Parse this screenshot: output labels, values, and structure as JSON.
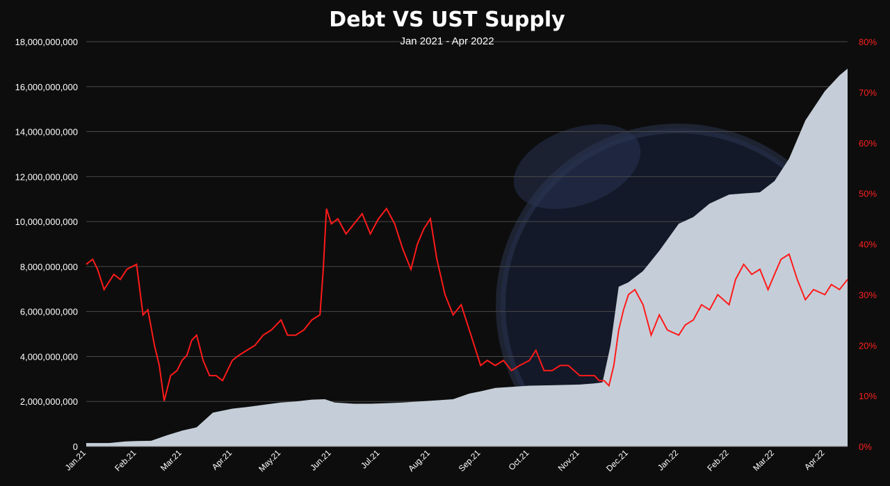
{
  "chart_data": {
    "type": "area",
    "title": "Debt VS UST Supply",
    "subtitle": "Jan 2021 - Apr 2022",
    "ylim": [
      0,
      18000000000
    ],
    "y2lim": [
      0,
      0.8
    ],
    "y_ticks": [
      "0",
      "2,000,000,000",
      "4,000,000,000",
      "6,000,000,000",
      "8,000,000,000",
      "10,000,000,000",
      "12,000,000,000",
      "14,000,000,000",
      "16,000,000,000",
      "18,000,000,000"
    ],
    "y2_ticks": [
      "0%",
      "10%",
      "20%",
      "30%",
      "40%",
      "50%",
      "60%",
      "70%",
      "80%"
    ],
    "x_ticks": [
      "Jan.21",
      "Feb.21",
      "Mar.21",
      "Apr.21",
      "May.21",
      "Jun.21",
      "Jul.21",
      "Aug.21",
      "Sep.21",
      "Oct.21",
      "Nov.21",
      "Dec.21",
      "Jan.22",
      "Feb.22",
      "Mar.22",
      "Apr.22"
    ],
    "grid": true,
    "colors": {
      "supply": "#c5ced8",
      "debt": "#ff1a1a",
      "background": "#0d0d0d",
      "watermark": "#1a2540"
    },
    "series": [
      {
        "kind": "area",
        "axis": "left",
        "x": [
          "2021-01-01",
          "2021-01-15",
          "2021-01-25",
          "2021-02-01",
          "2021-02-10",
          "2021-02-20",
          "2021-03-01",
          "2021-03-10",
          "2021-03-20",
          "2021-04-01",
          "2021-04-10",
          "2021-04-20",
          "2021-05-01",
          "2021-05-10",
          "2021-05-20",
          "2021-05-28",
          "2021-06-03",
          "2021-06-15",
          "2021-06-25",
          "2021-07-05",
          "2021-07-15",
          "2021-07-25",
          "2021-08-05",
          "2021-08-15",
          "2021-08-25",
          "2021-09-01",
          "2021-09-10",
          "2021-09-20",
          "2021-10-01",
          "2021-10-15",
          "2021-11-01",
          "2021-11-10",
          "2021-11-15",
          "2021-11-20",
          "2021-11-25",
          "2021-12-01",
          "2021-12-10",
          "2021-12-20",
          "2022-01-01",
          "2022-01-10",
          "2022-01-20",
          "2022-02-01",
          "2022-02-10",
          "2022-02-20",
          "2022-03-01",
          "2022-03-10",
          "2022-03-20",
          "2022-04-01",
          "2022-04-10",
          "2022-04-15"
        ],
        "values": [
          150000000,
          150000000,
          220000000,
          240000000,
          250000000,
          500000000,
          700000000,
          850000000,
          1500000000,
          1680000000,
          1750000000,
          1850000000,
          1950000000,
          2000000000,
          2080000000,
          2100000000,
          1950000000,
          1900000000,
          1900000000,
          1920000000,
          1950000000,
          2000000000,
          2050000000,
          2100000000,
          2350000000,
          2450000000,
          2600000000,
          2650000000,
          2700000000,
          2720000000,
          2750000000,
          2800000000,
          2850000000,
          4500000000,
          7100000000,
          7300000000,
          7800000000,
          8700000000,
          9900000000,
          10200000000,
          10800000000,
          11200000000,
          11250000000,
          11300000000,
          11800000000,
          12800000000,
          14500000000,
          15800000000,
          16500000000,
          16800000000
        ]
      },
      {
        "kind": "line",
        "axis": "right",
        "x": [
          "2021-01-01",
          "2021-01-05",
          "2021-01-08",
          "2021-01-12",
          "2021-01-18",
          "2021-01-22",
          "2021-01-26",
          "2021-02-01",
          "2021-02-05",
          "2021-02-08",
          "2021-02-12",
          "2021-02-15",
          "2021-02-18",
          "2021-02-22",
          "2021-02-26",
          "2021-03-01",
          "2021-03-04",
          "2021-03-07",
          "2021-03-10",
          "2021-03-14",
          "2021-03-18",
          "2021-03-22",
          "2021-03-26",
          "2021-04-01",
          "2021-04-05",
          "2021-04-10",
          "2021-04-15",
          "2021-04-20",
          "2021-04-25",
          "2021-05-01",
          "2021-05-05",
          "2021-05-10",
          "2021-05-15",
          "2021-05-20",
          "2021-05-25",
          "2021-05-27",
          "2021-05-29",
          "2021-06-01",
          "2021-06-05",
          "2021-06-10",
          "2021-06-15",
          "2021-06-20",
          "2021-06-25",
          "2021-06-30",
          "2021-07-05",
          "2021-07-10",
          "2021-07-15",
          "2021-07-20",
          "2021-07-24",
          "2021-07-28",
          "2021-08-01",
          "2021-08-05",
          "2021-08-10",
          "2021-08-15",
          "2021-08-20",
          "2021-08-25",
          "2021-09-01",
          "2021-09-05",
          "2021-09-10",
          "2021-09-15",
          "2021-09-20",
          "2021-09-25",
          "2021-10-01",
          "2021-10-05",
          "2021-10-10",
          "2021-10-15",
          "2021-10-20",
          "2021-10-25",
          "2021-11-01",
          "2021-11-05",
          "2021-11-10",
          "2021-11-13",
          "2021-11-16",
          "2021-11-19",
          "2021-11-22",
          "2021-11-25",
          "2021-11-28",
          "2021-12-01",
          "2021-12-05",
          "2021-12-10",
          "2021-12-15",
          "2021-12-20",
          "2021-12-25",
          "2022-01-01",
          "2022-01-05",
          "2022-01-10",
          "2022-01-15",
          "2022-01-20",
          "2022-01-25",
          "2022-02-01",
          "2022-02-05",
          "2022-02-10",
          "2022-02-15",
          "2022-02-20",
          "2022-02-25",
          "2022-03-01",
          "2022-03-05",
          "2022-03-10",
          "2022-03-15",
          "2022-03-20",
          "2022-03-25",
          "2022-04-01",
          "2022-04-05",
          "2022-04-10",
          "2022-04-15"
        ],
        "values": [
          0.36,
          0.37,
          0.35,
          0.31,
          0.34,
          0.33,
          0.35,
          0.36,
          0.26,
          0.27,
          0.2,
          0.16,
          0.09,
          0.14,
          0.15,
          0.17,
          0.18,
          0.21,
          0.22,
          0.17,
          0.14,
          0.14,
          0.13,
          0.17,
          0.18,
          0.19,
          0.2,
          0.22,
          0.23,
          0.25,
          0.22,
          0.22,
          0.23,
          0.25,
          0.26,
          0.35,
          0.47,
          0.44,
          0.45,
          0.42,
          0.44,
          0.46,
          0.42,
          0.45,
          0.47,
          0.44,
          0.39,
          0.35,
          0.4,
          0.43,
          0.45,
          0.37,
          0.3,
          0.26,
          0.28,
          0.23,
          0.16,
          0.17,
          0.16,
          0.17,
          0.15,
          0.16,
          0.17,
          0.19,
          0.15,
          0.15,
          0.16,
          0.16,
          0.14,
          0.14,
          0.14,
          0.13,
          0.13,
          0.12,
          0.16,
          0.23,
          0.27,
          0.3,
          0.31,
          0.28,
          0.22,
          0.26,
          0.23,
          0.22,
          0.24,
          0.25,
          0.28,
          0.27,
          0.3,
          0.28,
          0.33,
          0.36,
          0.34,
          0.35,
          0.31,
          0.34,
          0.37,
          0.38,
          0.33,
          0.29,
          0.31,
          0.3,
          0.32,
          0.31,
          0.33
        ]
      }
    ]
  }
}
